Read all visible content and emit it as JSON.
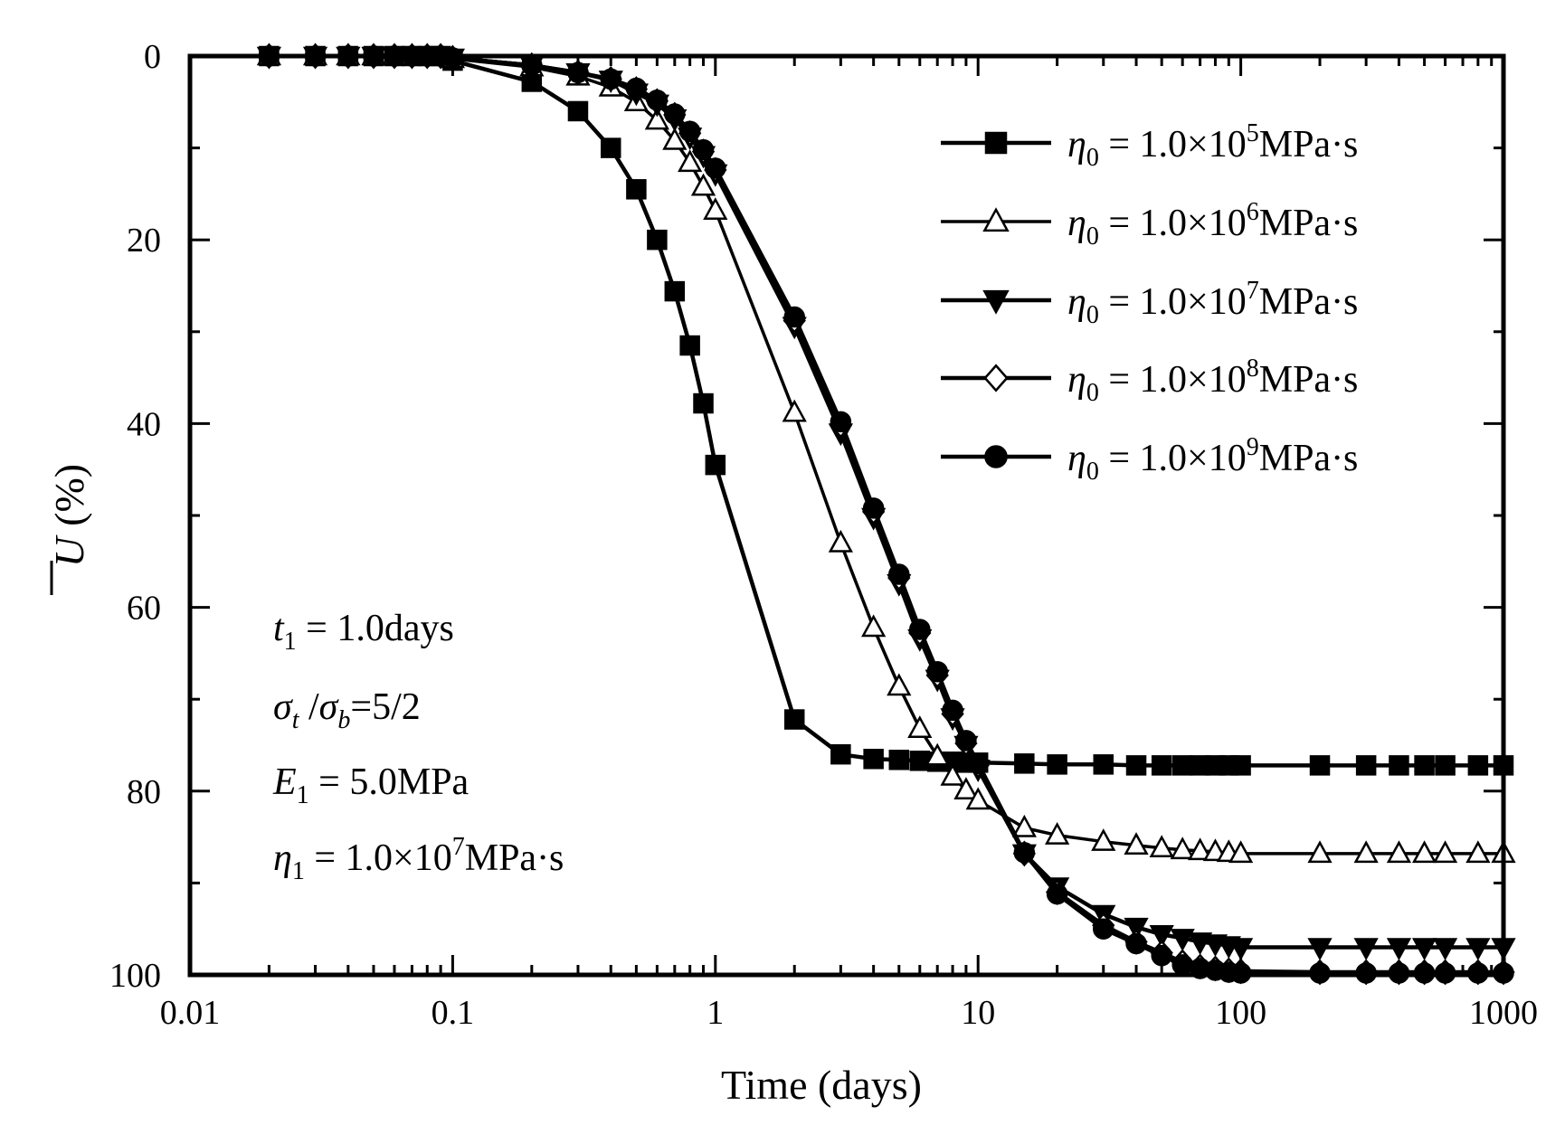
{
  "chart_data": {
    "type": "line",
    "xscale": "log",
    "xlim": [
      0.01,
      1000
    ],
    "ylim": [
      0,
      100
    ],
    "y_inverted": true,
    "xlabel": "Time (days)",
    "ylabel": {
      "symbol": "U",
      "unit": "(%)"
    },
    "xticks": [
      {
        "value": 0.01,
        "label": "0.01"
      },
      {
        "value": 0.1,
        "label": "0.1"
      },
      {
        "value": 1,
        "label": "1"
      },
      {
        "value": 10,
        "label": "10"
      },
      {
        "value": 100,
        "label": "100"
      },
      {
        "value": 1000,
        "label": "1000"
      }
    ],
    "yticks": [
      {
        "value": 0,
        "label": "0"
      },
      {
        "value": 20,
        "label": "20"
      },
      {
        "value": 40,
        "label": "40"
      },
      {
        "value": 60,
        "label": "60"
      },
      {
        "value": 80,
        "label": "80"
      },
      {
        "value": 100,
        "label": "100"
      }
    ],
    "legend_position": "top-right",
    "series": [
      {
        "name": "η0 = 1.0×10^5 MPa·s",
        "legend": {
          "sym": "η",
          "sub": "0",
          "mid": " = 1.0×10",
          "exp": "5",
          "unit": "MPa·s"
        },
        "marker": "square-filled",
        "x": [
          0.02,
          0.03,
          0.04,
          0.05,
          0.06,
          0.07,
          0.08,
          0.09,
          0.1,
          0.2,
          0.3,
          0.4,
          0.5,
          0.6,
          0.7,
          0.8,
          0.9,
          1,
          2,
          3,
          4,
          5,
          6,
          7,
          8,
          9,
          10,
          15,
          20,
          30,
          40,
          50,
          60,
          70,
          80,
          90,
          100,
          200,
          300,
          400,
          500,
          600,
          800,
          1000
        ],
        "values": [
          0,
          0,
          0,
          0,
          0,
          0,
          0,
          0,
          0.5,
          2.8,
          6,
          10,
          14.5,
          20,
          25.6,
          31.5,
          37.8,
          44.5,
          72.2,
          76,
          76.5,
          76.6,
          76.7,
          76.8,
          76.8,
          76.9,
          76.9,
          77,
          77.1,
          77.1,
          77.2,
          77.2,
          77.2,
          77.2,
          77.2,
          77.2,
          77.2,
          77.2,
          77.2,
          77.2,
          77.2,
          77.2,
          77.2,
          77.2
        ]
      },
      {
        "name": "η0 = 1.0×10^6 MPa·s",
        "legend": {
          "sym": "η",
          "sub": "0",
          "mid": " = 1.0×10",
          "exp": "6",
          "unit": "MPa·s"
        },
        "marker": "triangle-up-open",
        "x": [
          0.02,
          0.03,
          0.04,
          0.05,
          0.06,
          0.07,
          0.08,
          0.09,
          0.1,
          0.2,
          0.3,
          0.4,
          0.5,
          0.6,
          0.7,
          0.8,
          0.9,
          1,
          2,
          3,
          4,
          5,
          6,
          7,
          8,
          9,
          10,
          15,
          20,
          30,
          40,
          50,
          60,
          70,
          80,
          90,
          100,
          200,
          300,
          400,
          500,
          600,
          800,
          1000
        ],
        "values": [
          0,
          0,
          0,
          0,
          0,
          0,
          0,
          0,
          0.3,
          1.2,
          2.2,
          3.4,
          5,
          7,
          9.2,
          11.6,
          14.2,
          16.8,
          38.8,
          53,
          62.2,
          68.6,
          73.2,
          76.2,
          78.4,
          79.9,
          81,
          84,
          84.8,
          85.5,
          85.9,
          86.2,
          86.4,
          86.5,
          86.6,
          86.7,
          86.8,
          86.8,
          86.8,
          86.8,
          86.8,
          86.8,
          86.8,
          86.8
        ]
      },
      {
        "name": "η0 = 1.0×10^7 MPa·s",
        "legend": {
          "sym": "η",
          "sub": "0",
          "mid": " = 1.0×10",
          "exp": "7",
          "unit": "MPa·s"
        },
        "marker": "triangle-down-filled",
        "x": [
          0.02,
          0.03,
          0.04,
          0.05,
          0.06,
          0.07,
          0.08,
          0.09,
          0.1,
          0.2,
          0.3,
          0.4,
          0.5,
          0.6,
          0.7,
          0.8,
          0.9,
          1,
          2,
          3,
          4,
          5,
          6,
          7,
          8,
          9,
          10,
          15,
          20,
          30,
          40,
          50,
          60,
          70,
          80,
          90,
          100,
          200,
          300,
          400,
          500,
          600,
          800,
          1000
        ],
        "values": [
          0,
          0,
          0,
          0,
          0,
          0,
          0,
          0,
          0.2,
          1,
          1.8,
          2.6,
          4,
          5.2,
          6.8,
          8.8,
          10.8,
          12.8,
          29.4,
          41,
          50.2,
          57.4,
          63.4,
          67.8,
          72,
          75,
          77.6,
          86.8,
          90.4,
          93.4,
          94.8,
          95.6,
          96,
          96.4,
          96.6,
          96.8,
          97,
          97,
          97,
          97,
          97,
          97,
          97,
          97
        ]
      },
      {
        "name": "η0 = 1.0×10^8 MPa·s",
        "legend": {
          "sym": "η",
          "sub": "0",
          "mid": " = 1.0×10",
          "exp": "8",
          "unit": "MPa·s"
        },
        "marker": "diamond-open",
        "x": [
          0.02,
          0.03,
          0.04,
          0.05,
          0.06,
          0.07,
          0.08,
          0.09,
          0.1,
          0.2,
          0.3,
          0.4,
          0.5,
          0.6,
          0.7,
          0.8,
          0.9,
          1,
          2,
          3,
          4,
          5,
          6,
          7,
          8,
          9,
          10,
          15,
          20,
          30,
          40,
          50,
          60,
          70,
          80,
          90,
          100,
          200,
          300,
          400,
          500,
          600,
          800,
          1000
        ],
        "values": [
          0,
          0,
          0,
          0,
          0,
          0,
          0,
          0,
          0.2,
          1,
          1.8,
          2.5,
          3.6,
          4.9,
          6.4,
          8.4,
          10.4,
          12.4,
          28.8,
          40.2,
          49.6,
          56.8,
          62.8,
          67.4,
          71.6,
          74.8,
          77.2,
          86.8,
          91,
          94.6,
          96.4,
          97.6,
          98.6,
          99.1,
          99.3,
          99.5,
          99.6,
          99.7,
          99.7,
          99.7,
          99.7,
          99.7,
          99.7,
          99.7
        ]
      },
      {
        "name": "η0 = 1.0×10^9 MPa·s",
        "legend": {
          "sym": "η",
          "sub": "0",
          "mid": " = 1.0×10",
          "exp": "9",
          "unit": "MPa·s"
        },
        "marker": "circle-filled",
        "x": [
          0.02,
          0.03,
          0.04,
          0.05,
          0.06,
          0.07,
          0.08,
          0.09,
          0.1,
          0.2,
          0.3,
          0.4,
          0.5,
          0.6,
          0.7,
          0.8,
          0.9,
          1,
          2,
          3,
          4,
          5,
          6,
          7,
          8,
          9,
          10,
          15,
          20,
          30,
          40,
          50,
          60,
          70,
          80,
          90,
          100,
          200,
          300,
          400,
          500,
          600,
          800,
          1000
        ],
        "values": [
          0,
          0,
          0,
          0,
          0,
          0,
          0,
          0,
          0.2,
          1,
          1.8,
          2.5,
          3.5,
          4.8,
          6.3,
          8.2,
          10.2,
          12.2,
          28.4,
          39.8,
          49.2,
          56.4,
          62.4,
          67,
          71.2,
          74.5,
          77,
          86.7,
          91.2,
          95,
          96.6,
          97.9,
          98.9,
          99.3,
          99.5,
          99.7,
          99.8,
          99.8,
          99.8,
          99.8,
          99.8,
          99.8,
          99.8,
          99.8
        ]
      }
    ],
    "annotations": [
      {
        "parts": [
          {
            "t": "t",
            "s": "sym"
          },
          {
            "t": "1",
            "s": "sub"
          },
          {
            "t": " = 1.0days",
            "s": "plain"
          }
        ]
      },
      {
        "parts": [
          {
            "t": "σ",
            "s": "sym"
          },
          {
            "t": "t",
            "s": "subi"
          },
          {
            "t": " /",
            "s": "plain"
          },
          {
            "t": "σ",
            "s": "sym"
          },
          {
            "t": "b",
            "s": "subi"
          },
          {
            "t": "=5/2",
            "s": "plain"
          }
        ]
      },
      {
        "parts": [
          {
            "t": "E",
            "s": "sym"
          },
          {
            "t": "1",
            "s": "sub"
          },
          {
            "t": " = 5.0MPa",
            "s": "plain"
          }
        ]
      },
      {
        "parts": [
          {
            "t": "η",
            "s": "sym"
          },
          {
            "t": "1",
            "s": "sub"
          },
          {
            "t": " = 1.0×10",
            "s": "plain"
          },
          {
            "t": "7",
            "s": "sup"
          },
          {
            "t": "MPa·s",
            "s": "plain"
          }
        ]
      }
    ]
  }
}
